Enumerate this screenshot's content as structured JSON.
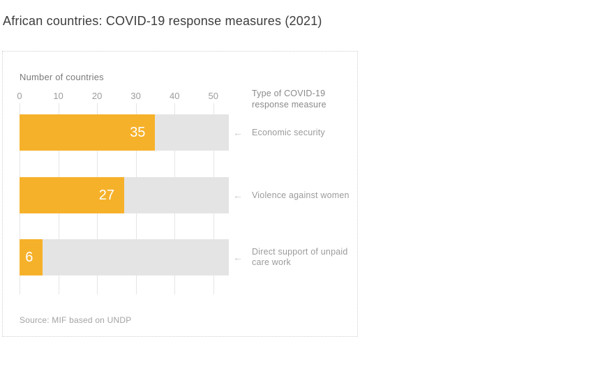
{
  "chart_data": {
    "type": "bar",
    "orientation": "horizontal",
    "title": "African countries: COVID-19 response measures (2021)",
    "xlabel": "Number of countries",
    "category_header": "Type of COVID-19 response measure",
    "categories": [
      "Economic security",
      "Violence against women",
      "Direct support of unpaid care work"
    ],
    "values": [
      35,
      27,
      6
    ],
    "track_total": 54,
    "xticks": [
      0,
      10,
      20,
      30,
      40,
      50
    ],
    "xlim": [
      0,
      54
    ],
    "grid": true,
    "value_label_position": "inside-end",
    "bar_color": "#f6b12b",
    "track_color": "#e4e4e4",
    "source": "Source: MIF based on UNDP"
  },
  "icons": {
    "arrow_left": "←"
  }
}
